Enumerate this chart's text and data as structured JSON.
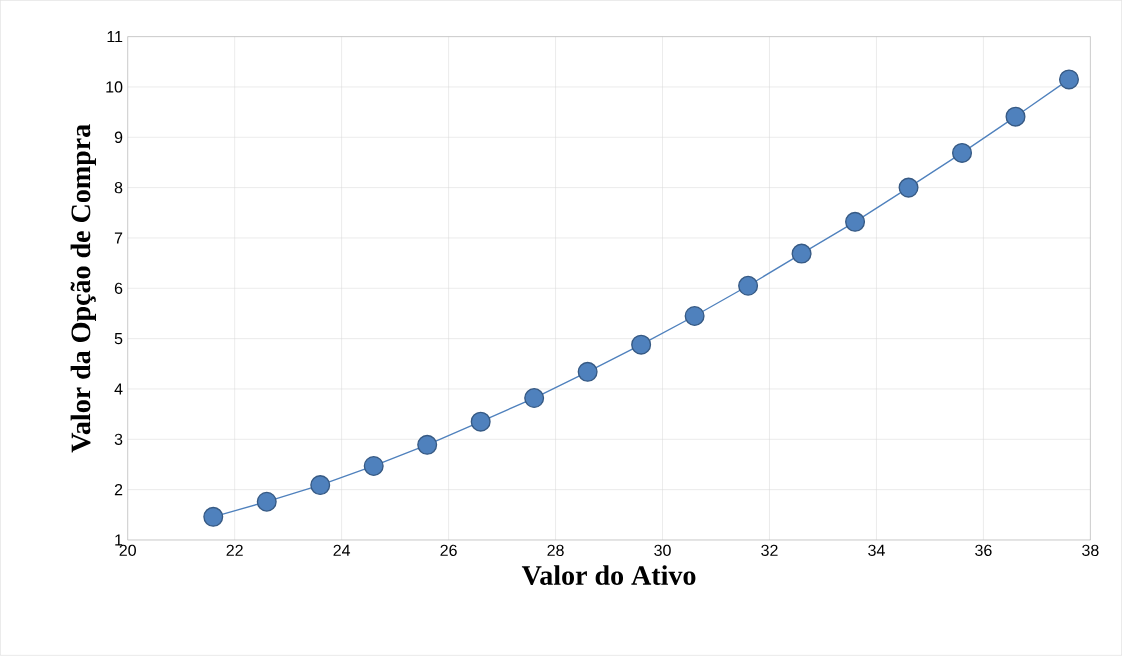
{
  "chart_data": {
    "type": "line",
    "xlabel": "Valor do Ativo",
    "ylabel": "Valor da Opção de Compra",
    "x": [
      21.6,
      22.6,
      23.6,
      24.6,
      25.6,
      26.6,
      27.6,
      28.6,
      29.6,
      30.6,
      31.6,
      32.6,
      33.6,
      34.6,
      35.6,
      36.6,
      37.6
    ],
    "series": [
      {
        "color": "#4f81bd",
        "values": [
          1.46,
          1.76,
          2.09,
          2.47,
          2.89,
          3.35,
          3.82,
          4.34,
          4.88,
          5.45,
          6.05,
          6.69,
          7.32,
          8.0,
          8.69,
          9.41,
          10.15
        ]
      }
    ],
    "xlim": [
      20,
      38
    ],
    "ylim": [
      1,
      11
    ],
    "xticks": [
      20,
      22,
      24,
      26,
      28,
      30,
      32,
      34,
      36,
      38
    ],
    "yticks": [
      1,
      2,
      3,
      4,
      5,
      6,
      7,
      8,
      9,
      10,
      11
    ],
    "grid": true,
    "marker": "circle",
    "line_style": "solid"
  }
}
